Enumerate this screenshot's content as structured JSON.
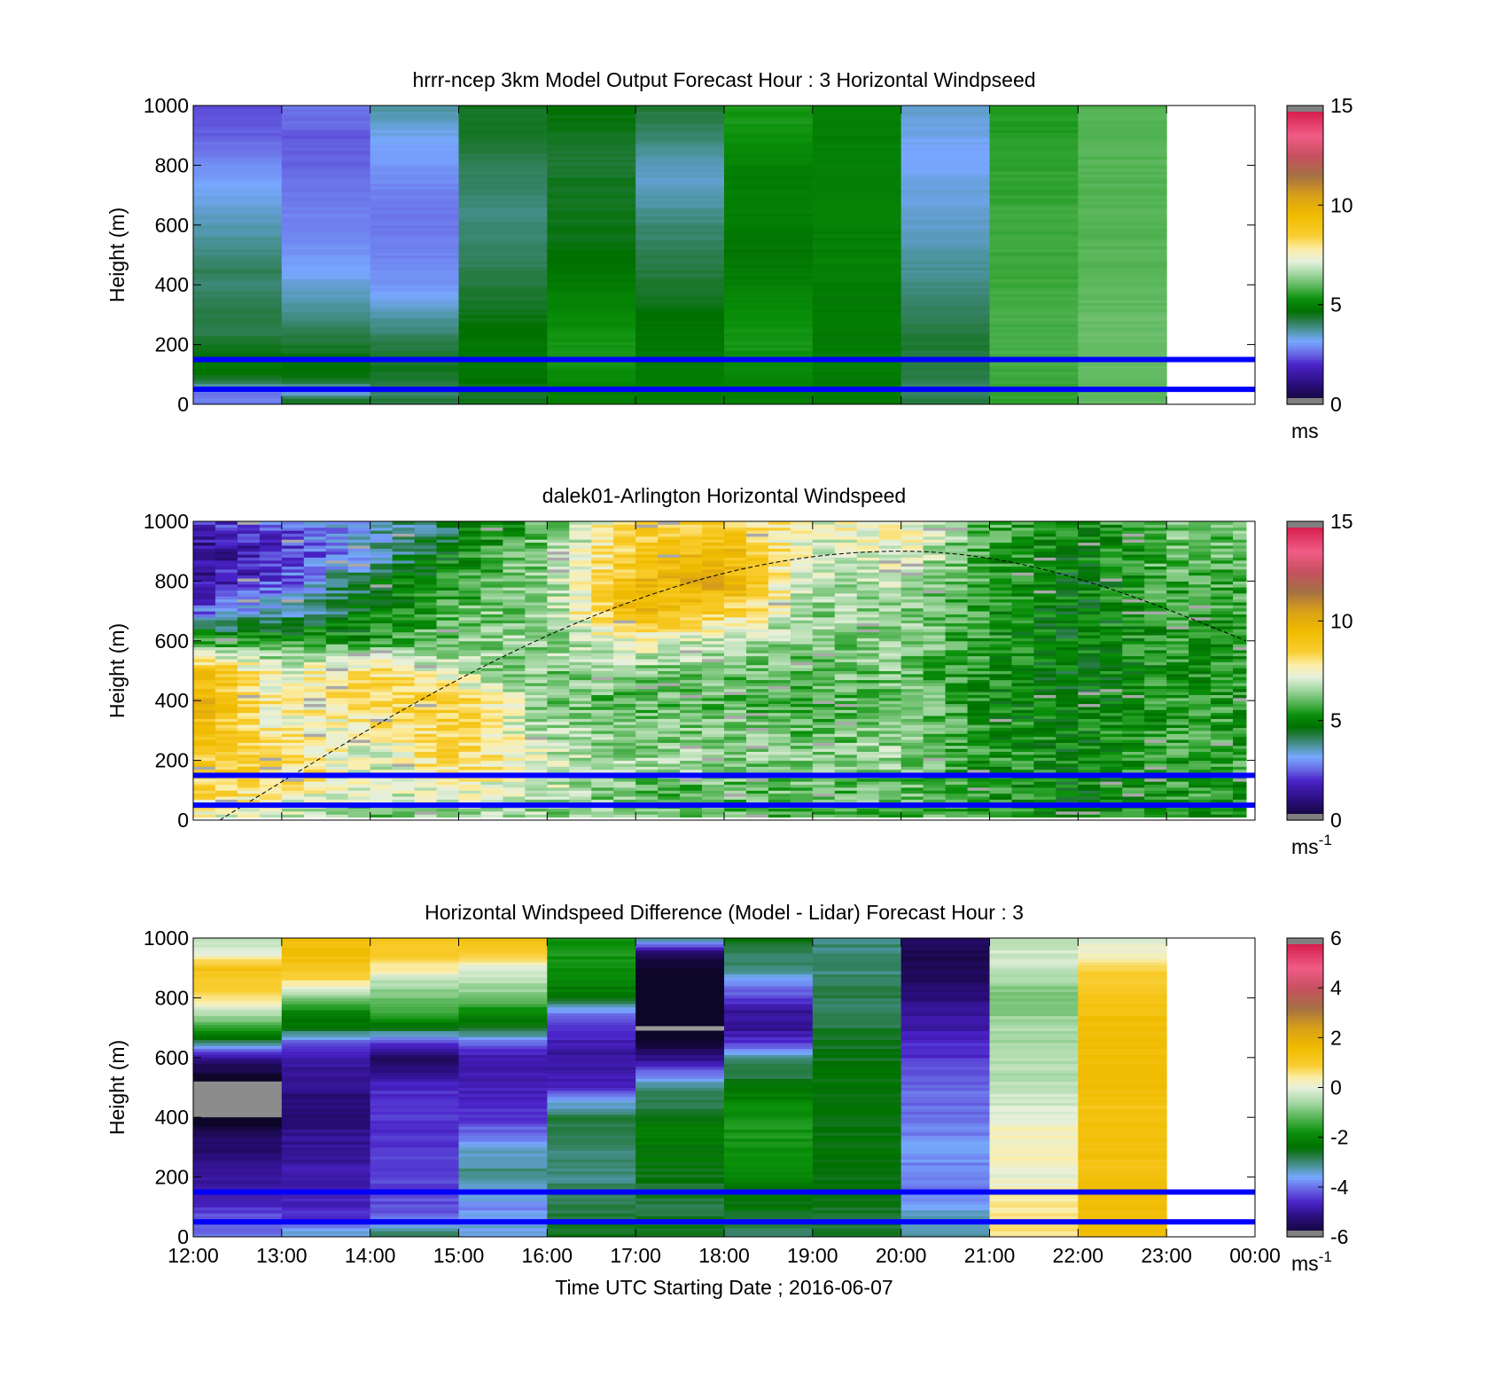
{
  "figure": {
    "xlabel": "Time UTC  Starting Date ; 2016-06-07"
  },
  "colors": {
    "overlay_lines": "#0000ff",
    "solar_curve": "#000000",
    "no_data": "#ffffff"
  },
  "chart_data": [
    {
      "type": "heatmap",
      "title": "hrrr-ncep 3km Model Output   Forecast Hour : 3 Horizontal Windpseed",
      "ylabel": "Height (m)",
      "ylim": [
        0,
        1000
      ],
      "yticks": [
        "0",
        "200",
        "400",
        "600",
        "800",
        "1000"
      ],
      "xlim": [
        "12:00",
        "00:00"
      ],
      "xticks": [
        "12:00",
        "13:00",
        "14:00",
        "15:00",
        "16:00",
        "17:00",
        "18:00",
        "19:00",
        "20:00",
        "21:00",
        "22:00",
        "23:00",
        "00:00"
      ],
      "show_xtick_labels": false,
      "colorbar": {
        "min": 0,
        "max": 15,
        "ticks": [
          "0",
          "5",
          "10",
          "15"
        ],
        "unit": "ms",
        "unit_sup": "",
        "colormap": "speed"
      },
      "overlay_lines_m": [
        150,
        50
      ],
      "columns_hours": [
        12,
        13,
        14,
        15,
        16,
        17,
        18,
        19,
        20,
        21,
        22
      ],
      "profiles_heights_m": [
        20,
        40,
        60,
        80,
        120,
        160,
        200,
        240,
        280,
        320,
        360,
        400,
        450,
        500,
        550,
        600,
        650,
        700,
        750,
        800,
        850,
        900,
        950,
        1000
      ],
      "profiles": [
        [
          2.8,
          2.6,
          3.6,
          4.4,
          4.9,
          4.7,
          4.5,
          4.2,
          4.3,
          4.3,
          4.1,
          4.0,
          4.2,
          3.9,
          3.8,
          3.6,
          3.5,
          3.3,
          3.1,
          2.9,
          2.7,
          2.5,
          2.4,
          2.3
        ],
        [
          4.4,
          3.2,
          3.7,
          4.5,
          4.8,
          4.6,
          4.4,
          4.2,
          4.0,
          3.8,
          3.6,
          3.4,
          3.2,
          3.0,
          2.9,
          2.8,
          2.8,
          2.7,
          2.6,
          2.5,
          2.5,
          2.4,
          2.6,
          2.7
        ],
        [
          4.3,
          4.0,
          4.2,
          4.4,
          4.5,
          4.4,
          4.3,
          4.0,
          3.8,
          3.5,
          3.2,
          3.0,
          2.9,
          2.8,
          2.8,
          2.7,
          2.7,
          2.8,
          2.9,
          3.0,
          3.1,
          3.3,
          3.5,
          3.8
        ],
        [
          4.5,
          4.5,
          4.6,
          4.7,
          4.8,
          4.8,
          4.8,
          4.7,
          4.6,
          4.5,
          4.4,
          4.3,
          4.2,
          4.1,
          4.0,
          4.0,
          3.9,
          4.0,
          4.1,
          4.2,
          4.3,
          4.4,
          4.5,
          4.5
        ],
        [
          5.0,
          5.0,
          5.1,
          5.2,
          5.3,
          5.4,
          5.4,
          5.3,
          5.2,
          5.1,
          5.0,
          4.9,
          4.8,
          4.7,
          4.6,
          4.6,
          4.5,
          4.5,
          4.5,
          4.4,
          4.4,
          4.5,
          4.6,
          4.7
        ],
        [
          5.0,
          5.0,
          5.0,
          5.0,
          4.9,
          4.9,
          4.8,
          4.8,
          4.7,
          4.6,
          4.5,
          4.4,
          4.3,
          4.2,
          4.1,
          4.0,
          3.8,
          3.6,
          3.5,
          3.6,
          3.8,
          4.0,
          4.2,
          4.4
        ],
        [
          5.0,
          5.0,
          5.0,
          5.1,
          5.2,
          5.3,
          5.4,
          5.4,
          5.3,
          5.2,
          5.1,
          5.0,
          4.9,
          4.8,
          4.8,
          4.9,
          5.0,
          5.0,
          4.9,
          5.0,
          5.2,
          5.3,
          5.4,
          5.4
        ],
        [
          4.9,
          4.9,
          4.9,
          4.9,
          4.9,
          4.9,
          4.9,
          4.9,
          4.9,
          4.9,
          4.9,
          4.9,
          5.0,
          5.0,
          5.0,
          5.0,
          5.0,
          5.0,
          5.0,
          5.0,
          5.0,
          5.0,
          5.0,
          5.0
        ],
        [
          4.3,
          4.0,
          4.1,
          4.2,
          4.3,
          4.3,
          4.4,
          4.3,
          4.2,
          4.1,
          4.0,
          3.9,
          3.8,
          3.7,
          3.6,
          3.5,
          3.4,
          3.4,
          3.3,
          3.2,
          3.2,
          3.3,
          3.4,
          3.5
        ],
        [
          5.6,
          5.6,
          5.6,
          5.7,
          5.7,
          5.8,
          5.8,
          5.8,
          5.8,
          5.8,
          5.8,
          5.7,
          5.7,
          5.7,
          5.7,
          5.7,
          5.7,
          5.6,
          5.6,
          5.6,
          5.6,
          5.5,
          5.5,
          5.5
        ],
        [
          6.0,
          6.0,
          6.0,
          6.0,
          6.0,
          6.0,
          6.1,
          6.1,
          6.1,
          6.0,
          6.0,
          6.0,
          5.9,
          5.9,
          5.9,
          5.9,
          5.9,
          5.9,
          5.9,
          5.9,
          5.9,
          5.9,
          5.9,
          5.9
        ]
      ]
    },
    {
      "type": "heatmap",
      "title": "dalek01-Arlington  Horizontal Windspeed",
      "ylabel": "Height (m)",
      "ylim": [
        0,
        1000
      ],
      "yticks": [
        "0",
        "200",
        "400",
        "600",
        "800",
        "1000"
      ],
      "xlim": [
        "12:00",
        "00:00"
      ],
      "xticks": [
        "12:00",
        "13:00",
        "14:00",
        "15:00",
        "16:00",
        "17:00",
        "18:00",
        "19:00",
        "20:00",
        "21:00",
        "22:00",
        "23:00",
        "00:00"
      ],
      "show_xtick_labels": false,
      "colorbar": {
        "min": 0,
        "max": 15,
        "ticks": [
          "0",
          "5",
          "10",
          "15"
        ],
        "unit": "ms",
        "unit_sup": "-1",
        "colormap": "speed"
      },
      "overlay_lines_m": [
        150,
        50
      ],
      "solar_curve": {
        "peak_height_m": 900,
        "peak_hour": 20.0,
        "start_hour": 12.3,
        "end_hour": 23.9,
        "end_height_m": 600
      },
      "columns_every_hours": 0.25,
      "data_hours": [
        12.0,
        23.9
      ],
      "control_heights_m": [
        20,
        100,
        200,
        300,
        400,
        500,
        600,
        700,
        800,
        900,
        1000
      ],
      "control_hours": [
        12,
        13,
        14,
        15,
        16,
        17,
        18,
        19,
        20,
        21,
        22,
        23,
        24
      ],
      "control_values": [
        [
          7.5,
          8.5,
          8.8,
          9.4,
          10.0,
          9.6,
          5.5,
          2.5,
          1.5,
          1.0,
          2.0
        ],
        [
          7.0,
          8.0,
          8.5,
          7.7,
          7.4,
          7.2,
          5.5,
          3.5,
          2.5,
          2.0,
          2.5
        ],
        [
          6.0,
          7.0,
          7.0,
          7.5,
          8.5,
          8.3,
          5.5,
          4.8,
          4.5,
          3.5,
          3.5
        ],
        [
          6.5,
          7.5,
          8.5,
          8.6,
          8.8,
          6.8,
          6.3,
          6.0,
          5.5,
          5.0,
          4.5
        ],
        [
          6.5,
          7.0,
          7.0,
          6.6,
          6.2,
          6.3,
          6.5,
          6.5,
          6.5,
          6.5,
          6.0
        ],
        [
          6.0,
          6.0,
          6.5,
          6.4,
          6.0,
          6.4,
          7.5,
          9.6,
          9.4,
          8.8,
          8.3
        ],
        [
          6.0,
          6.0,
          6.5,
          6.2,
          6.0,
          6.2,
          6.8,
          8.7,
          10.2,
          9.6,
          8.5
        ],
        [
          6.0,
          6.0,
          6.3,
          6.0,
          5.8,
          6.0,
          6.3,
          6.5,
          6.7,
          7.0,
          7.2
        ],
        [
          6.0,
          6.0,
          6.5,
          6.4,
          6.2,
          6.3,
          6.5,
          6.4,
          6.8,
          7.5,
          7.8
        ],
        [
          5.5,
          5.5,
          5.5,
          5.4,
          5.3,
          5.3,
          5.4,
          5.5,
          5.5,
          5.6,
          5.8
        ],
        [
          5.0,
          5.0,
          5.0,
          5.0,
          4.8,
          4.8,
          4.8,
          4.8,
          4.8,
          4.9,
          5.0
        ],
        [
          5.5,
          5.5,
          5.6,
          5.6,
          5.5,
          5.4,
          5.5,
          5.6,
          5.8,
          6.0,
          6.2
        ],
        [
          5.5,
          5.5,
          5.6,
          5.6,
          5.5,
          5.4,
          5.5,
          5.6,
          5.8,
          6.0,
          6.2
        ]
      ]
    },
    {
      "type": "heatmap",
      "title": "Horizontal Windspeed Difference (Model - Lidar) Forecast Hour : 3",
      "ylabel": "Height (m)",
      "ylim": [
        0,
        1000
      ],
      "yticks": [
        "0",
        "200",
        "400",
        "600",
        "800",
        "1000"
      ],
      "xlim": [
        "12:00",
        "00:00"
      ],
      "xticks": [
        "12:00",
        "13:00",
        "14:00",
        "15:00",
        "16:00",
        "17:00",
        "18:00",
        "19:00",
        "20:00",
        "21:00",
        "22:00",
        "23:00",
        "00:00"
      ],
      "show_xtick_labels": true,
      "colorbar": {
        "min": -6,
        "max": 6,
        "ticks": [
          "-6",
          "-4",
          "-2",
          "0",
          "2",
          "4",
          "6"
        ],
        "unit": "ms",
        "unit_sup": "-1",
        "colormap": "diff"
      },
      "overlay_lines_m": [
        150,
        50
      ],
      "columns_hours": [
        12,
        13,
        14,
        15,
        16,
        17,
        18,
        19,
        20,
        21,
        22
      ],
      "profiles_heights_m": [
        20,
        60,
        100,
        150,
        200,
        250,
        300,
        350,
        400,
        450,
        500,
        550,
        600,
        650,
        700,
        750,
        800,
        850,
        900,
        950,
        1000
      ],
      "profiles": [
        [
          -4.0,
          -4.2,
          -4.5,
          -4.9,
          -5.0,
          -5.1,
          -5.3,
          -5.6,
          -6.2,
          -6.5,
          -6.5,
          -5.8,
          -5.0,
          -3.0,
          -1.5,
          -0.5,
          0.5,
          1.0,
          1.3,
          0.0,
          -0.5
        ],
        [
          -3.5,
          -4.5,
          -4.6,
          -4.7,
          -4.8,
          -4.9,
          -5.0,
          -5.1,
          -5.2,
          -5.2,
          -5.1,
          -5.0,
          -4.9,
          -4.2,
          -2.5,
          -2.0,
          -1.0,
          0.5,
          1.2,
          1.5,
          1.5
        ],
        [
          -3.0,
          -4.0,
          -4.2,
          -4.3,
          -4.4,
          -4.4,
          -4.5,
          -4.5,
          -4.5,
          -4.4,
          -4.6,
          -5.0,
          -5.5,
          -4.5,
          -2.5,
          -1.5,
          -1.0,
          -0.5,
          0.5,
          1.0,
          1.2
        ],
        [
          -3.5,
          -3.5,
          -3.8,
          -3.4,
          -3.0,
          -3.2,
          -3.5,
          -4.0,
          -4.5,
          -4.6,
          -4.7,
          -4.8,
          -4.9,
          -4.0,
          -2.5,
          -2.0,
          -1.0,
          -0.5,
          0.0,
          1.0,
          1.5
        ],
        [
          -2.5,
          -2.7,
          -2.8,
          -2.9,
          -3.0,
          -3.0,
          -2.9,
          -2.8,
          -2.7,
          -3.5,
          -4.6,
          -4.9,
          -5.0,
          -4.8,
          -4.5,
          -3.8,
          -2.5,
          -2.0,
          -1.8,
          -1.7,
          -1.8
        ],
        [
          -2.5,
          -2.6,
          -2.7,
          -2.6,
          -2.5,
          -2.4,
          -2.3,
          -2.2,
          -2.4,
          -2.8,
          -3.0,
          -4.0,
          -5.2,
          -5.8,
          -6.5,
          -6.8,
          -6.9,
          -6.5,
          -6.0,
          -5.5,
          -3.0
        ],
        [
          -3.0,
          -2.5,
          -2.4,
          -2.3,
          -2.0,
          -1.9,
          -1.8,
          -1.7,
          -1.8,
          -2.0,
          -2.3,
          -2.8,
          -3.0,
          -4.5,
          -5.0,
          -5.0,
          -4.3,
          -3.8,
          -3.0,
          -2.8,
          -2.5
        ],
        [
          -2.6,
          -2.6,
          -2.6,
          -2.5,
          -2.5,
          -2.5,
          -2.4,
          -2.4,
          -2.4,
          -2.4,
          -2.4,
          -2.4,
          -2.5,
          -2.6,
          -2.7,
          -2.8,
          -2.8,
          -2.9,
          -3.0,
          -3.0,
          -3.0
        ],
        [
          -3.2,
          -3.3,
          -3.5,
          -3.8,
          -4.0,
          -3.8,
          -3.5,
          -3.9,
          -4.0,
          -4.1,
          -4.0,
          -4.2,
          -4.5,
          -4.6,
          -4.8,
          -5.0,
          -5.2,
          -5.4,
          -5.6,
          -5.5,
          -5.3
        ],
        [
          0.5,
          0.6,
          0.5,
          0.4,
          0.0,
          0.3,
          0.2,
          0.3,
          0.0,
          -0.2,
          -0.3,
          -0.5,
          -0.4,
          -0.6,
          -0.5,
          -0.8,
          -1.0,
          -0.7,
          -0.3,
          -0.2,
          -0.5
        ],
        [
          1.5,
          1.6,
          1.5,
          1.5,
          1.4,
          1.3,
          1.4,
          1.5,
          1.4,
          1.3,
          1.5,
          1.6,
          1.5,
          1.5,
          1.6,
          1.4,
          1.2,
          1.0,
          0.8,
          0.2,
          0.0
        ]
      ]
    }
  ]
}
